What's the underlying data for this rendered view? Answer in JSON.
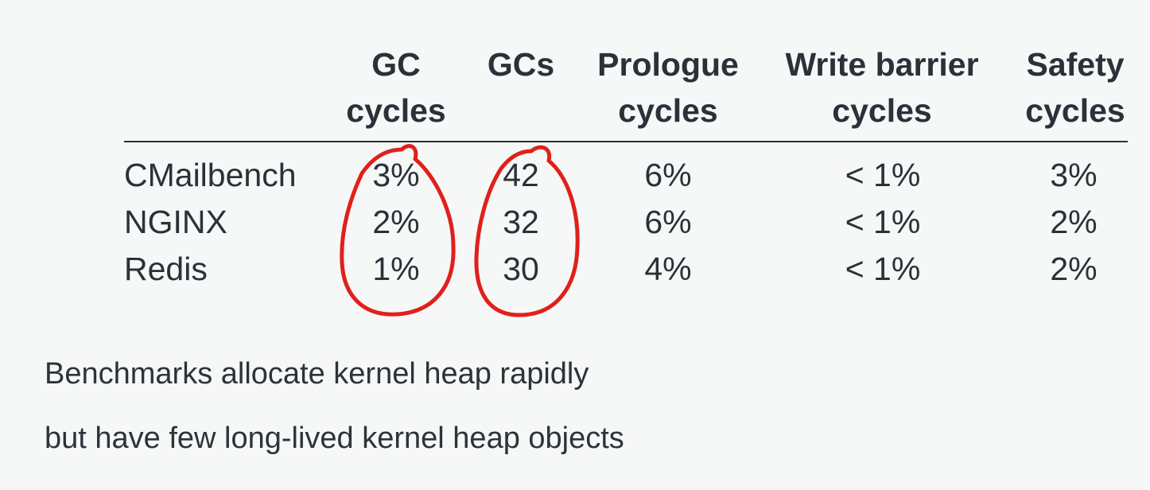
{
  "table": {
    "columns": [
      {
        "line1": "GC",
        "line2": "cycles"
      },
      {
        "line1": "GCs",
        "line2": ""
      },
      {
        "line1": "Prologue",
        "line2": "cycles"
      },
      {
        "line1": "Write barrier",
        "line2": "cycles"
      },
      {
        "line1": "Safety",
        "line2": "cycles"
      }
    ],
    "rows": [
      {
        "label": "CMailbench",
        "cells": [
          "3%",
          "42",
          "6%",
          "< 1%",
          "3%"
        ]
      },
      {
        "label": "NGINX",
        "cells": [
          "2%",
          "32",
          "6%",
          "< 1%",
          "2%"
        ]
      },
      {
        "label": "Redis",
        "cells": [
          "1%",
          "30",
          "4%",
          "< 1%",
          "2%"
        ]
      }
    ]
  },
  "annotations": {
    "color": "#e0201b",
    "circled_columns": [
      "GC cycles",
      "GCs"
    ]
  },
  "caption": {
    "line1": "Benchmarks allocate kernel heap rapidly",
    "line2": "but have few long-lived kernel heap objects"
  }
}
